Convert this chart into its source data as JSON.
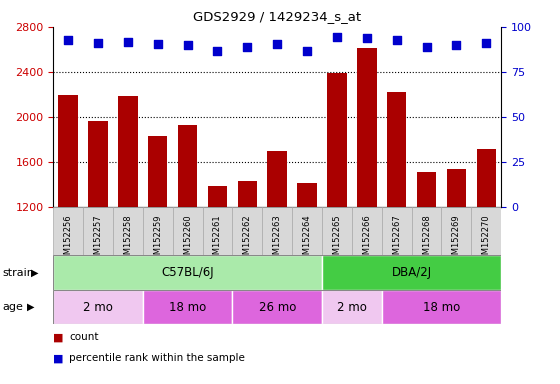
{
  "title": "GDS2929 / 1429234_s_at",
  "samples": [
    "GSM152256",
    "GSM152257",
    "GSM152258",
    "GSM152259",
    "GSM152260",
    "GSM152261",
    "GSM152262",
    "GSM152263",
    "GSM152264",
    "GSM152265",
    "GSM152266",
    "GSM152267",
    "GSM152268",
    "GSM152269",
    "GSM152270"
  ],
  "counts": [
    2200,
    1970,
    2190,
    1830,
    1930,
    1390,
    1430,
    1700,
    1420,
    2390,
    2610,
    2220,
    1510,
    1540,
    1720
  ],
  "percentiles": [
    2680,
    2660,
    2670,
    2650,
    2640,
    2590,
    2620,
    2650,
    2590,
    2710,
    2700,
    2680,
    2620,
    2640,
    2660
  ],
  "ylim_left": [
    1200,
    2800
  ],
  "ylim_right": [
    0,
    100
  ],
  "yticks_left": [
    1200,
    1600,
    2000,
    2400,
    2800
  ],
  "yticks_right": [
    0,
    25,
    50,
    75,
    100
  ],
  "bar_color": "#aa0000",
  "dot_color": "#0000cc",
  "strain_groups": [
    {
      "label": "C57BL/6J",
      "start": 0,
      "end": 9,
      "color": "#aaeaaa"
    },
    {
      "label": "DBA/2J",
      "start": 9,
      "end": 15,
      "color": "#44cc44"
    }
  ],
  "age_groups": [
    {
      "label": "2 mo",
      "start": 0,
      "end": 3,
      "color": "#f0c8f0"
    },
    {
      "label": "18 mo",
      "start": 3,
      "end": 6,
      "color": "#dd66dd"
    },
    {
      "label": "26 mo",
      "start": 6,
      "end": 9,
      "color": "#dd66dd"
    },
    {
      "label": "2 mo",
      "start": 9,
      "end": 11,
      "color": "#f0c8f0"
    },
    {
      "label": "18 mo",
      "start": 11,
      "end": 15,
      "color": "#dd66dd"
    }
  ],
  "legend_count_label": "count",
  "legend_pct_label": "percentile rank within the sample",
  "strain_label": "strain",
  "age_label": "age",
  "background_color": "#ffffff",
  "tick_label_color_left": "#cc0000",
  "tick_label_color_right": "#0000cc",
  "sample_band_color": "#d8d8d8",
  "sample_band_border": "#aaaaaa"
}
